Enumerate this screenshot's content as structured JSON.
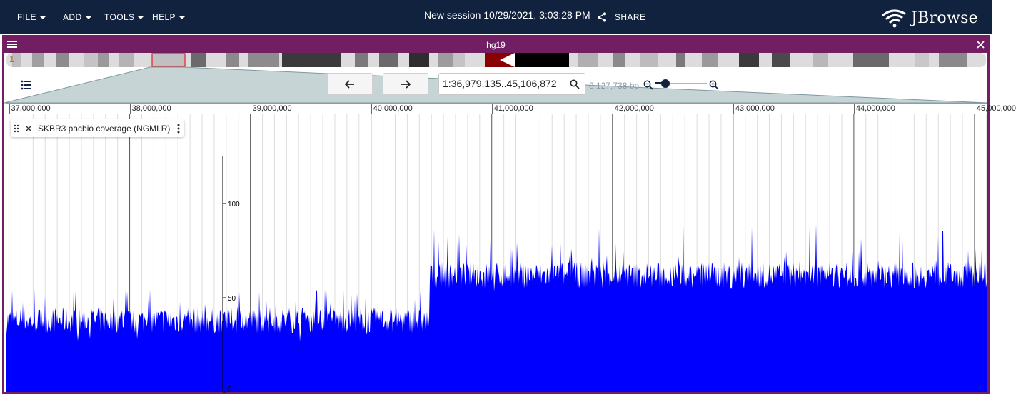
{
  "menus": [
    {
      "label": "FILE",
      "name": "file-menu"
    },
    {
      "label": "ADD",
      "name": "add-menu"
    },
    {
      "label": "TOOLS",
      "name": "tools-menu"
    },
    {
      "label": "HELP",
      "name": "help-menu"
    }
  ],
  "session": {
    "title": "New session 10/29/2021, 3:03:28 PM",
    "share_label": "SHARE"
  },
  "logo": {
    "text": "JBrowse",
    "icon": "jbrowse-logo-icon"
  },
  "view": {
    "assembly": "hg19",
    "chromosome": "1",
    "location": "1:36,979,135..45,106,872",
    "bp_per_view": "8,127,738 bp",
    "zoom_level": 0.2,
    "accent_color": "#721e63"
  },
  "scale": {
    "ticks": [
      {
        "label": "37,000,000",
        "pos": 37000000
      },
      {
        "label": "38,000,000",
        "pos": 38000000
      },
      {
        "label": "39,000,000",
        "pos": 39000000
      },
      {
        "label": "40,000,000",
        "pos": 40000000
      },
      {
        "label": "41,000,000",
        "pos": 41000000
      },
      {
        "label": "42,000,000",
        "pos": 42000000
      },
      {
        "label": "43,000,000",
        "pos": 43000000
      },
      {
        "label": "44,000,000",
        "pos": 44000000
      },
      {
        "label": "45,000,000",
        "pos": 45000000
      }
    ]
  },
  "track": {
    "name": "SKBR3 pacbio coverage (NGMLR)",
    "color": "#0000ff",
    "y_axis": {
      "min": 0,
      "max": 125,
      "ticks": [
        "0",
        "50",
        "100"
      ]
    }
  },
  "icons": [
    "hamburger-icon",
    "close-icon",
    "track-list-icon",
    "arrow-left-icon",
    "arrow-right-icon",
    "search-icon",
    "zoom-out-icon",
    "zoom-in-icon",
    "share-icon",
    "drag-handle-icon",
    "vertical-dots-icon"
  ]
}
